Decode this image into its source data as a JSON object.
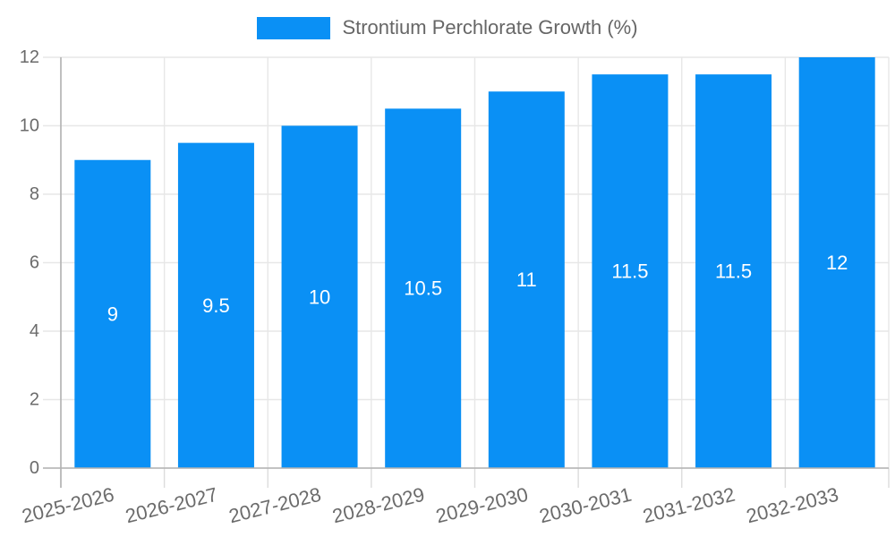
{
  "legend": {
    "label": "Strontium Perchlorate Growth (%)",
    "swatch_color": "#0a90f5"
  },
  "colors": {
    "bar": "#0a90f5",
    "grid_line": "#e7e7e7",
    "tick_mark": "#dcdcdc",
    "axis_line": "#b2b2b2",
    "tick_text": "#6b6b6b",
    "bar_label_text": "#ffffff",
    "background": "#ffffff"
  },
  "chart_data": {
    "type": "bar",
    "title": "Strontium Perchlorate Growth (%)",
    "categories": [
      "2025-2026",
      "2026-2027",
      "2027-2028",
      "2028-2029",
      "2029-2030",
      "2030-2031",
      "2031-2032",
      "2032-2033"
    ],
    "values": [
      9,
      9.5,
      10,
      10.5,
      11,
      11.5,
      11.5,
      12
    ],
    "bar_labels": [
      "9",
      "9.5",
      "10",
      "10.5",
      "11",
      "11.5",
      "11.5",
      "12"
    ],
    "ytick_labels": [
      "0",
      "2",
      "4",
      "6",
      "8",
      "10",
      "12"
    ],
    "yticks": [
      0,
      2,
      4,
      6,
      8,
      10,
      12
    ],
    "ylim": [
      0,
      12
    ],
    "xlabel": "",
    "ylabel": "",
    "grid": true,
    "legend_position": "top-center",
    "x_label_rotation_deg": -14
  }
}
